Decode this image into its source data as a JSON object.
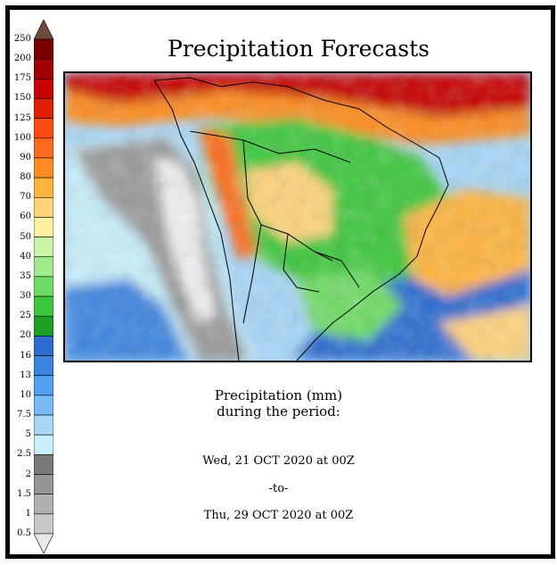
{
  "title": "Precipitation Forecasts",
  "caption": {
    "line1": "Precipitation (mm)",
    "line2": "during the period:",
    "start": "Wed, 21 OCT 2020 at 00Z",
    "separator": "-to-",
    "end": "Thu, 29 OCT 2020 at 00Z"
  },
  "legend": {
    "unit": "mm",
    "levels": [
      "250",
      "200",
      "175",
      "150",
      "125",
      "100",
      "90",
      "80",
      "70",
      "60",
      "50",
      "40",
      "35",
      "30",
      "25",
      "20",
      "16",
      "13",
      "10",
      "7.5",
      "5",
      "2.5",
      "2",
      "1.5",
      "1",
      "0.5"
    ],
    "colors": [
      "#6e4a3c",
      "#7a0000",
      "#a00000",
      "#c80000",
      "#e01e00",
      "#ff4a14",
      "#ff6a1e",
      "#ff8c1e",
      "#ffb43c",
      "#ffd37a",
      "#ffee9e",
      "#c8f5a8",
      "#a0eb8a",
      "#6edc64",
      "#3cc83c",
      "#1ea020",
      "#2a6cd0",
      "#3a84e0",
      "#52a0f0",
      "#78bcf6",
      "#a6d6f8",
      "#c8f0fc",
      "#7a7a7a",
      "#969696",
      "#b0b0b0",
      "#c8c8c8",
      "#e8e8e8"
    ]
  },
  "map": {
    "region": "South America",
    "ocean_color": "#a6d6f8",
    "dry_color": "#a0a0a0",
    "wet_color": "#3cc83c",
    "heavy_color": "#c80000"
  }
}
